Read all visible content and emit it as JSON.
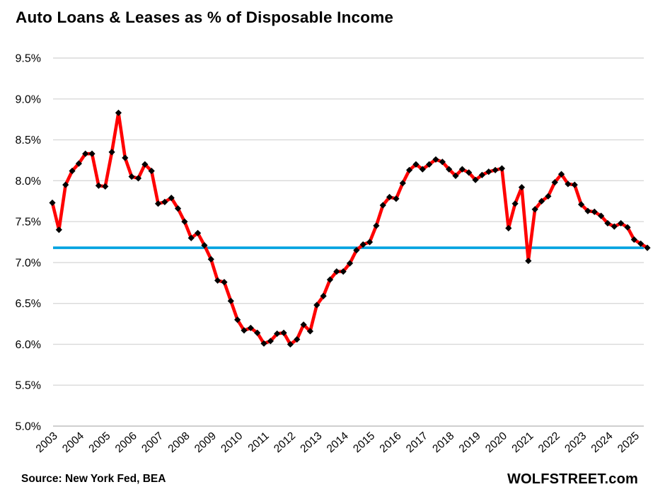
{
  "page": {
    "background": "#FFFFFF"
  },
  "footer": {
    "source": "Source: New York Fed, BEA",
    "brand": "WOLFSTREET.com"
  },
  "chart_data": {
    "type": "line",
    "title": "Auto Loans & Leases as % of Disposable Income",
    "unit": "%",
    "frequency": "quarterly",
    "x_start": "2003Q1",
    "x_end": "2025Q3",
    "ylim": [
      5.0,
      9.5
    ],
    "ytick_step": 0.5,
    "ytick_labels": [
      "9.5%",
      "9.0%",
      "8.5%",
      "8.0%",
      "7.5%",
      "7.0%",
      "6.5%",
      "6.0%",
      "5.5%",
      "5.0%"
    ],
    "xtick_labels": [
      "2003",
      "2004",
      "2005",
      "2006",
      "2007",
      "2008",
      "2009",
      "2010",
      "2011",
      "2012",
      "2013",
      "2014",
      "2015",
      "2016",
      "2017",
      "2018",
      "2019",
      "2020",
      "2021",
      "2022",
      "2023",
      "2024",
      "2025"
    ],
    "grid": "horizontal",
    "legend": "none",
    "line_color": "#FF0000",
    "marker": {
      "shape": "diamond",
      "color": "#000000"
    },
    "gridline_color": "#D9D9D9",
    "axis_line_color": "#BFBFBF",
    "reference_line": {
      "value": 7.18,
      "color": "#00A2E0"
    },
    "series": [
      {
        "name": "Auto loans & leases as % of disposable income",
        "by_year": [
          {
            "year": 2003,
            "values": [
              7.73,
              7.4,
              7.95,
              8.12
            ]
          },
          {
            "year": 2004,
            "values": [
              8.21,
              8.33,
              8.33,
              7.94
            ]
          },
          {
            "year": 2005,
            "values": [
              7.93,
              8.35,
              8.83,
              8.28
            ]
          },
          {
            "year": 2006,
            "values": [
              8.05,
              8.03,
              8.2,
              8.12
            ]
          },
          {
            "year": 2007,
            "values": [
              7.72,
              7.74,
              7.79,
              7.66
            ]
          },
          {
            "year": 2008,
            "values": [
              7.5,
              7.3,
              7.36,
              7.21
            ]
          },
          {
            "year": 2009,
            "values": [
              7.04,
              6.78,
              6.76,
              6.53
            ]
          },
          {
            "year": 2010,
            "values": [
              6.3,
              6.17,
              6.2,
              6.14
            ]
          },
          {
            "year": 2011,
            "values": [
              6.01,
              6.04,
              6.13,
              6.14
            ]
          },
          {
            "year": 2012,
            "values": [
              6.0,
              6.06,
              6.24,
              6.16
            ]
          },
          {
            "year": 2013,
            "values": [
              6.48,
              6.59,
              6.79,
              6.89
            ]
          },
          {
            "year": 2014,
            "values": [
              6.89,
              6.99,
              7.15,
              7.22
            ]
          },
          {
            "year": 2015,
            "values": [
              7.25,
              7.45,
              7.7,
              7.8
            ]
          },
          {
            "year": 2016,
            "values": [
              7.78,
              7.97,
              8.13,
              8.2
            ]
          },
          {
            "year": 2017,
            "values": [
              8.14,
              8.2,
              8.26,
              8.23
            ]
          },
          {
            "year": 2018,
            "values": [
              8.14,
              8.06,
              8.14,
              8.1
            ]
          },
          {
            "year": 2019,
            "values": [
              8.01,
              8.07,
              8.11,
              8.13
            ]
          },
          {
            "year": 2020,
            "values": [
              8.15,
              7.42,
              7.72,
              7.92
            ]
          },
          {
            "year": 2021,
            "values": [
              7.02,
              7.65,
              7.75,
              7.81
            ]
          },
          {
            "year": 2022,
            "values": [
              7.98,
              8.08,
              7.96,
              7.95
            ]
          },
          {
            "year": 2023,
            "values": [
              7.71,
              7.63,
              7.62,
              7.57
            ]
          },
          {
            "year": 2024,
            "values": [
              7.48,
              7.44,
              7.48,
              7.43
            ]
          },
          {
            "year": 2025,
            "values": [
              7.28,
              7.23,
              7.18
            ]
          }
        ]
      }
    ]
  }
}
